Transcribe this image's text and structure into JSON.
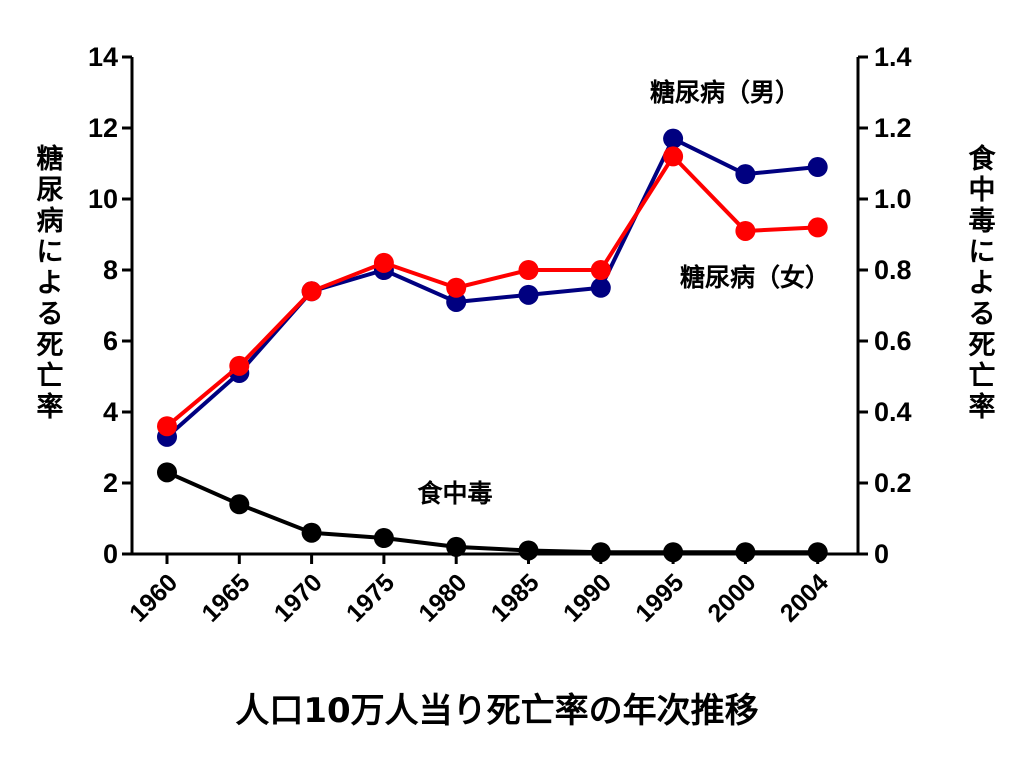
{
  "chart_data": {
    "type": "line",
    "title": "人口10万人当り死亡率の年次推移",
    "x": [
      "1960",
      "1965",
      "1970",
      "1975",
      "1980",
      "1985",
      "1990",
      "1995",
      "2000",
      "2004"
    ],
    "y_left": {
      "label": "糖尿病による死亡率",
      "range": [
        0,
        14
      ],
      "ticks": [
        "0",
        "2",
        "4",
        "6",
        "8",
        "10",
        "12",
        "14"
      ]
    },
    "y_right": {
      "label": "食中毒による死亡率",
      "range": [
        0,
        1.4
      ],
      "ticks": [
        "0",
        "0.2",
        "0.4",
        "0.6",
        "0.8",
        "1.0",
        "1.2",
        "1.4"
      ]
    },
    "grid": false,
    "series": [
      {
        "name": "糖尿病（男）",
        "axis": "left",
        "color": "#000080",
        "values": [
          3.3,
          5.1,
          7.4,
          8.0,
          7.1,
          7.3,
          7.5,
          11.7,
          10.7,
          10.9
        ]
      },
      {
        "name": "糖尿病（女）",
        "axis": "left",
        "color": "#ff0000",
        "values": [
          3.6,
          5.3,
          7.4,
          8.2,
          7.5,
          8.0,
          8.0,
          11.2,
          9.1,
          9.2
        ]
      },
      {
        "name": "食中毒",
        "axis": "right",
        "color": "#000000",
        "values": [
          0.23,
          0.14,
          0.06,
          0.045,
          0.02,
          0.01,
          0.005,
          0.005,
          0.005,
          0.005
        ]
      }
    ]
  }
}
